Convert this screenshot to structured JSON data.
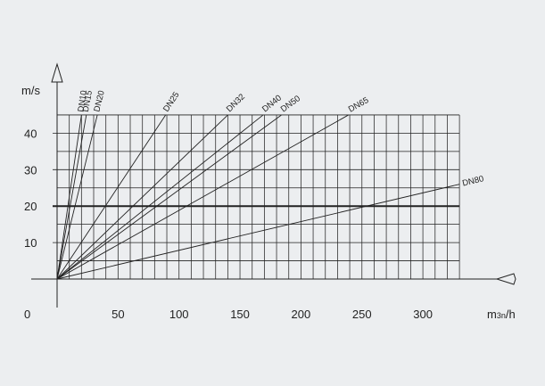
{
  "chart_data": {
    "type": "line",
    "ylabel": "m/s",
    "xlabel": "m3n/h",
    "xlabel_main": "m",
    "xlabel_sub": "3n",
    "xlabel_tail": "/h",
    "origin_label": "0",
    "xlim": [
      0,
      330
    ],
    "ylim": [
      0,
      45
    ],
    "grid": true,
    "grid_x_step": 10,
    "grid_y_step": 5,
    "xticks": [
      50,
      100,
      150,
      200,
      250,
      300
    ],
    "yticks": [
      10,
      20,
      30,
      40
    ],
    "highlight_y": 20,
    "series": [
      {
        "name": "DN10",
        "x": [
          0,
          20
        ],
        "y": [
          0,
          45
        ]
      },
      {
        "name": "DN15",
        "x": [
          0,
          24
        ],
        "y": [
          0,
          45
        ]
      },
      {
        "name": "DN20",
        "x": [
          0,
          33
        ],
        "y": [
          0,
          45
        ]
      },
      {
        "name": "DN25",
        "x": [
          0,
          89
        ],
        "y": [
          0,
          45
        ]
      },
      {
        "name": "DN32",
        "x": [
          0,
          140
        ],
        "y": [
          0,
          45
        ]
      },
      {
        "name": "DN40",
        "x": [
          0,
          169
        ],
        "y": [
          0,
          45
        ]
      },
      {
        "name": "DN50",
        "x": [
          0,
          184
        ],
        "y": [
          0,
          45
        ]
      },
      {
        "name": "DN65",
        "x": [
          0,
          239
        ],
        "y": [
          0,
          45
        ]
      },
      {
        "name": "DN80",
        "x": [
          0,
          330
        ],
        "y": [
          0,
          26
        ]
      }
    ],
    "colors": {
      "background": "#eceef0",
      "line": "#222222"
    }
  }
}
